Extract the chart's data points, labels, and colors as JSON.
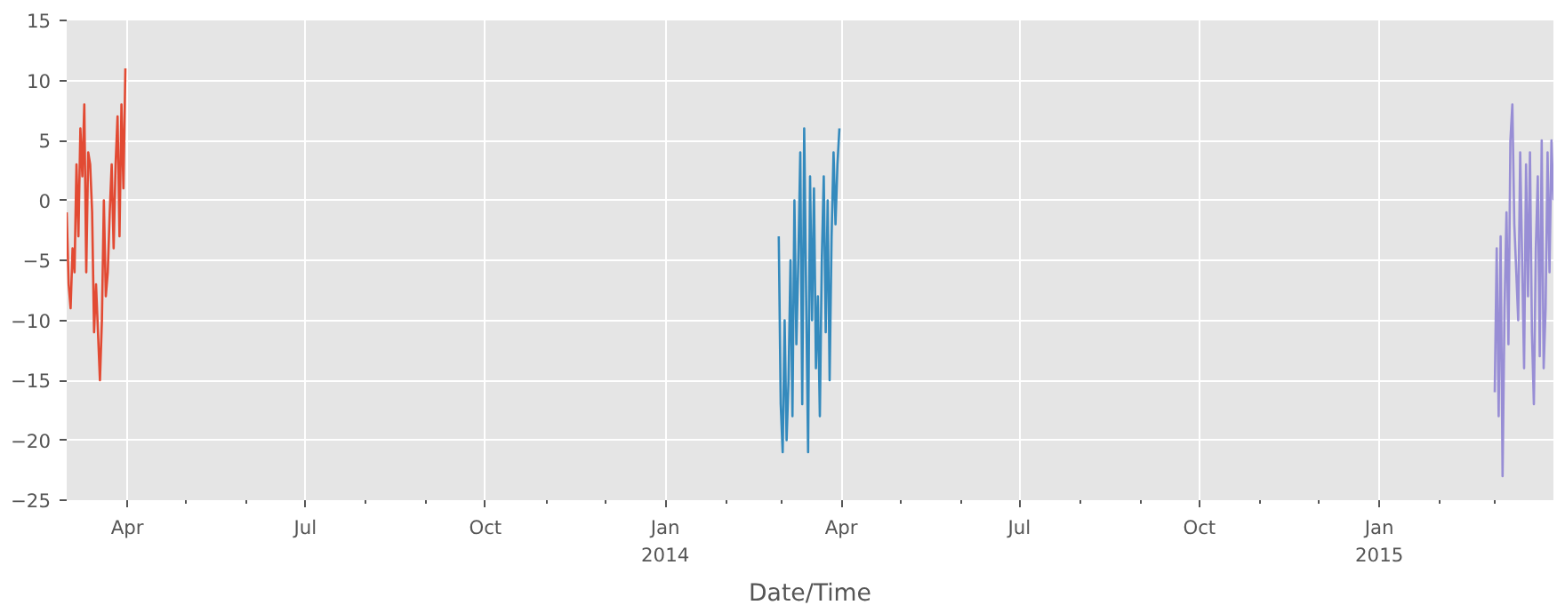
{
  "chart_data": {
    "type": "line",
    "xlabel": "Date/Time",
    "xlim": [
      "2013-03-01",
      "2015-03-31"
    ],
    "ylim": [
      -25,
      15
    ],
    "xticks": [
      {
        "value": "2013-04-01",
        "label": "Apr"
      },
      {
        "value": "2013-05-01",
        "label": null
      },
      {
        "value": "2013-06-01",
        "label": null
      },
      {
        "value": "2013-07-01",
        "label": "Jul"
      },
      {
        "value": "2013-08-01",
        "label": null
      },
      {
        "value": "2013-09-01",
        "label": null
      },
      {
        "value": "2013-10-01",
        "label": "Oct"
      },
      {
        "value": "2013-11-01",
        "label": null
      },
      {
        "value": "2013-12-01",
        "label": null
      },
      {
        "value": "2014-01-01",
        "label": "Jan\n2014"
      },
      {
        "value": "2014-02-01",
        "label": null
      },
      {
        "value": "2014-03-01",
        "label": null
      },
      {
        "value": "2014-04-01",
        "label": "Apr"
      },
      {
        "value": "2014-05-01",
        "label": null
      },
      {
        "value": "2014-06-01",
        "label": null
      },
      {
        "value": "2014-07-01",
        "label": "Jul"
      },
      {
        "value": "2014-08-01",
        "label": null
      },
      {
        "value": "2014-09-01",
        "label": null
      },
      {
        "value": "2014-10-01",
        "label": "Oct"
      },
      {
        "value": "2014-11-01",
        "label": null
      },
      {
        "value": "2014-12-01",
        "label": null
      },
      {
        "value": "2015-01-01",
        "label": "Jan\n2015"
      },
      {
        "value": "2015-02-01",
        "label": null
      },
      {
        "value": "2015-03-01",
        "label": null
      }
    ],
    "yticks": [
      {
        "value": -25,
        "label": "−25"
      },
      {
        "value": -20,
        "label": "−20"
      },
      {
        "value": -15,
        "label": "−15"
      },
      {
        "value": -10,
        "label": "−10"
      },
      {
        "value": -5,
        "label": "−5"
      },
      0,
      5,
      10,
      15
    ],
    "grid": true,
    "line_style": "solid",
    "marker": "none",
    "series": [
      {
        "color": "#e24a33",
        "x": [
          "2013-03-01",
          "2013-03-02",
          "2013-03-03",
          "2013-03-04",
          "2013-03-05",
          "2013-03-06",
          "2013-03-07",
          "2013-03-08",
          "2013-03-09",
          "2013-03-10",
          "2013-03-11",
          "2013-03-12",
          "2013-03-13",
          "2013-03-14",
          "2013-03-15",
          "2013-03-16",
          "2013-03-17",
          "2013-03-18",
          "2013-03-19",
          "2013-03-20",
          "2013-03-21",
          "2013-03-22",
          "2013-03-23",
          "2013-03-24",
          "2013-03-25",
          "2013-03-26",
          "2013-03-27",
          "2013-03-28",
          "2013-03-29",
          "2013-03-30",
          "2013-03-31"
        ],
        "values": [
          -1,
          -7,
          -9,
          -4,
          -6,
          3,
          -3,
          6,
          2,
          8,
          -6,
          4,
          3,
          -1,
          -11,
          -7,
          -11,
          -15,
          -10,
          0,
          -8,
          -6,
          -1,
          3,
          -4,
          3,
          7,
          -3,
          8,
          1,
          11
        ]
      },
      {
        "color": "#348abd",
        "x": [
          "2014-02-28",
          "2014-03-01",
          "2014-03-02",
          "2014-03-03",
          "2014-03-04",
          "2014-03-05",
          "2014-03-06",
          "2014-03-07",
          "2014-03-08",
          "2014-03-09",
          "2014-03-10",
          "2014-03-11",
          "2014-03-12",
          "2014-03-13",
          "2014-03-14",
          "2014-03-15",
          "2014-03-16",
          "2014-03-17",
          "2014-03-18",
          "2014-03-19",
          "2014-03-20",
          "2014-03-21",
          "2014-03-22",
          "2014-03-23",
          "2014-03-24",
          "2014-03-25",
          "2014-03-26",
          "2014-03-27",
          "2014-03-28",
          "2014-03-29",
          "2014-03-30",
          "2014-03-31"
        ],
        "values": [
          -3,
          -17,
          -21,
          -10,
          -20,
          -15,
          -5,
          -18,
          0,
          -12,
          -5,
          4,
          -17,
          6,
          -8,
          -21,
          2,
          -10,
          1,
          -14,
          -8,
          -18,
          -5,
          2,
          -11,
          0,
          -15,
          -3,
          4,
          -2,
          3,
          6
        ]
      },
      {
        "color": "#988ed5",
        "x": [
          "2015-03-01",
          "2015-03-02",
          "2015-03-03",
          "2015-03-04",
          "2015-03-05",
          "2015-03-06",
          "2015-03-07",
          "2015-03-08",
          "2015-03-09",
          "2015-03-10",
          "2015-03-11",
          "2015-03-12",
          "2015-03-13",
          "2015-03-14",
          "2015-03-15",
          "2015-03-16",
          "2015-03-17",
          "2015-03-18",
          "2015-03-19",
          "2015-03-20",
          "2015-03-21",
          "2015-03-22",
          "2015-03-23",
          "2015-03-24",
          "2015-03-25",
          "2015-03-26",
          "2015-03-27",
          "2015-03-28",
          "2015-03-29",
          "2015-03-30",
          "2015-03-31"
        ],
        "values": [
          -16,
          -4,
          -18,
          -3,
          -23,
          -9,
          -1,
          -12,
          5,
          8,
          -2,
          -6,
          -10,
          4,
          -5,
          -14,
          3,
          -8,
          4,
          -11,
          -17,
          -4,
          2,
          -13,
          5,
          -14,
          -9,
          4,
          -6,
          5,
          0
        ]
      }
    ]
  }
}
